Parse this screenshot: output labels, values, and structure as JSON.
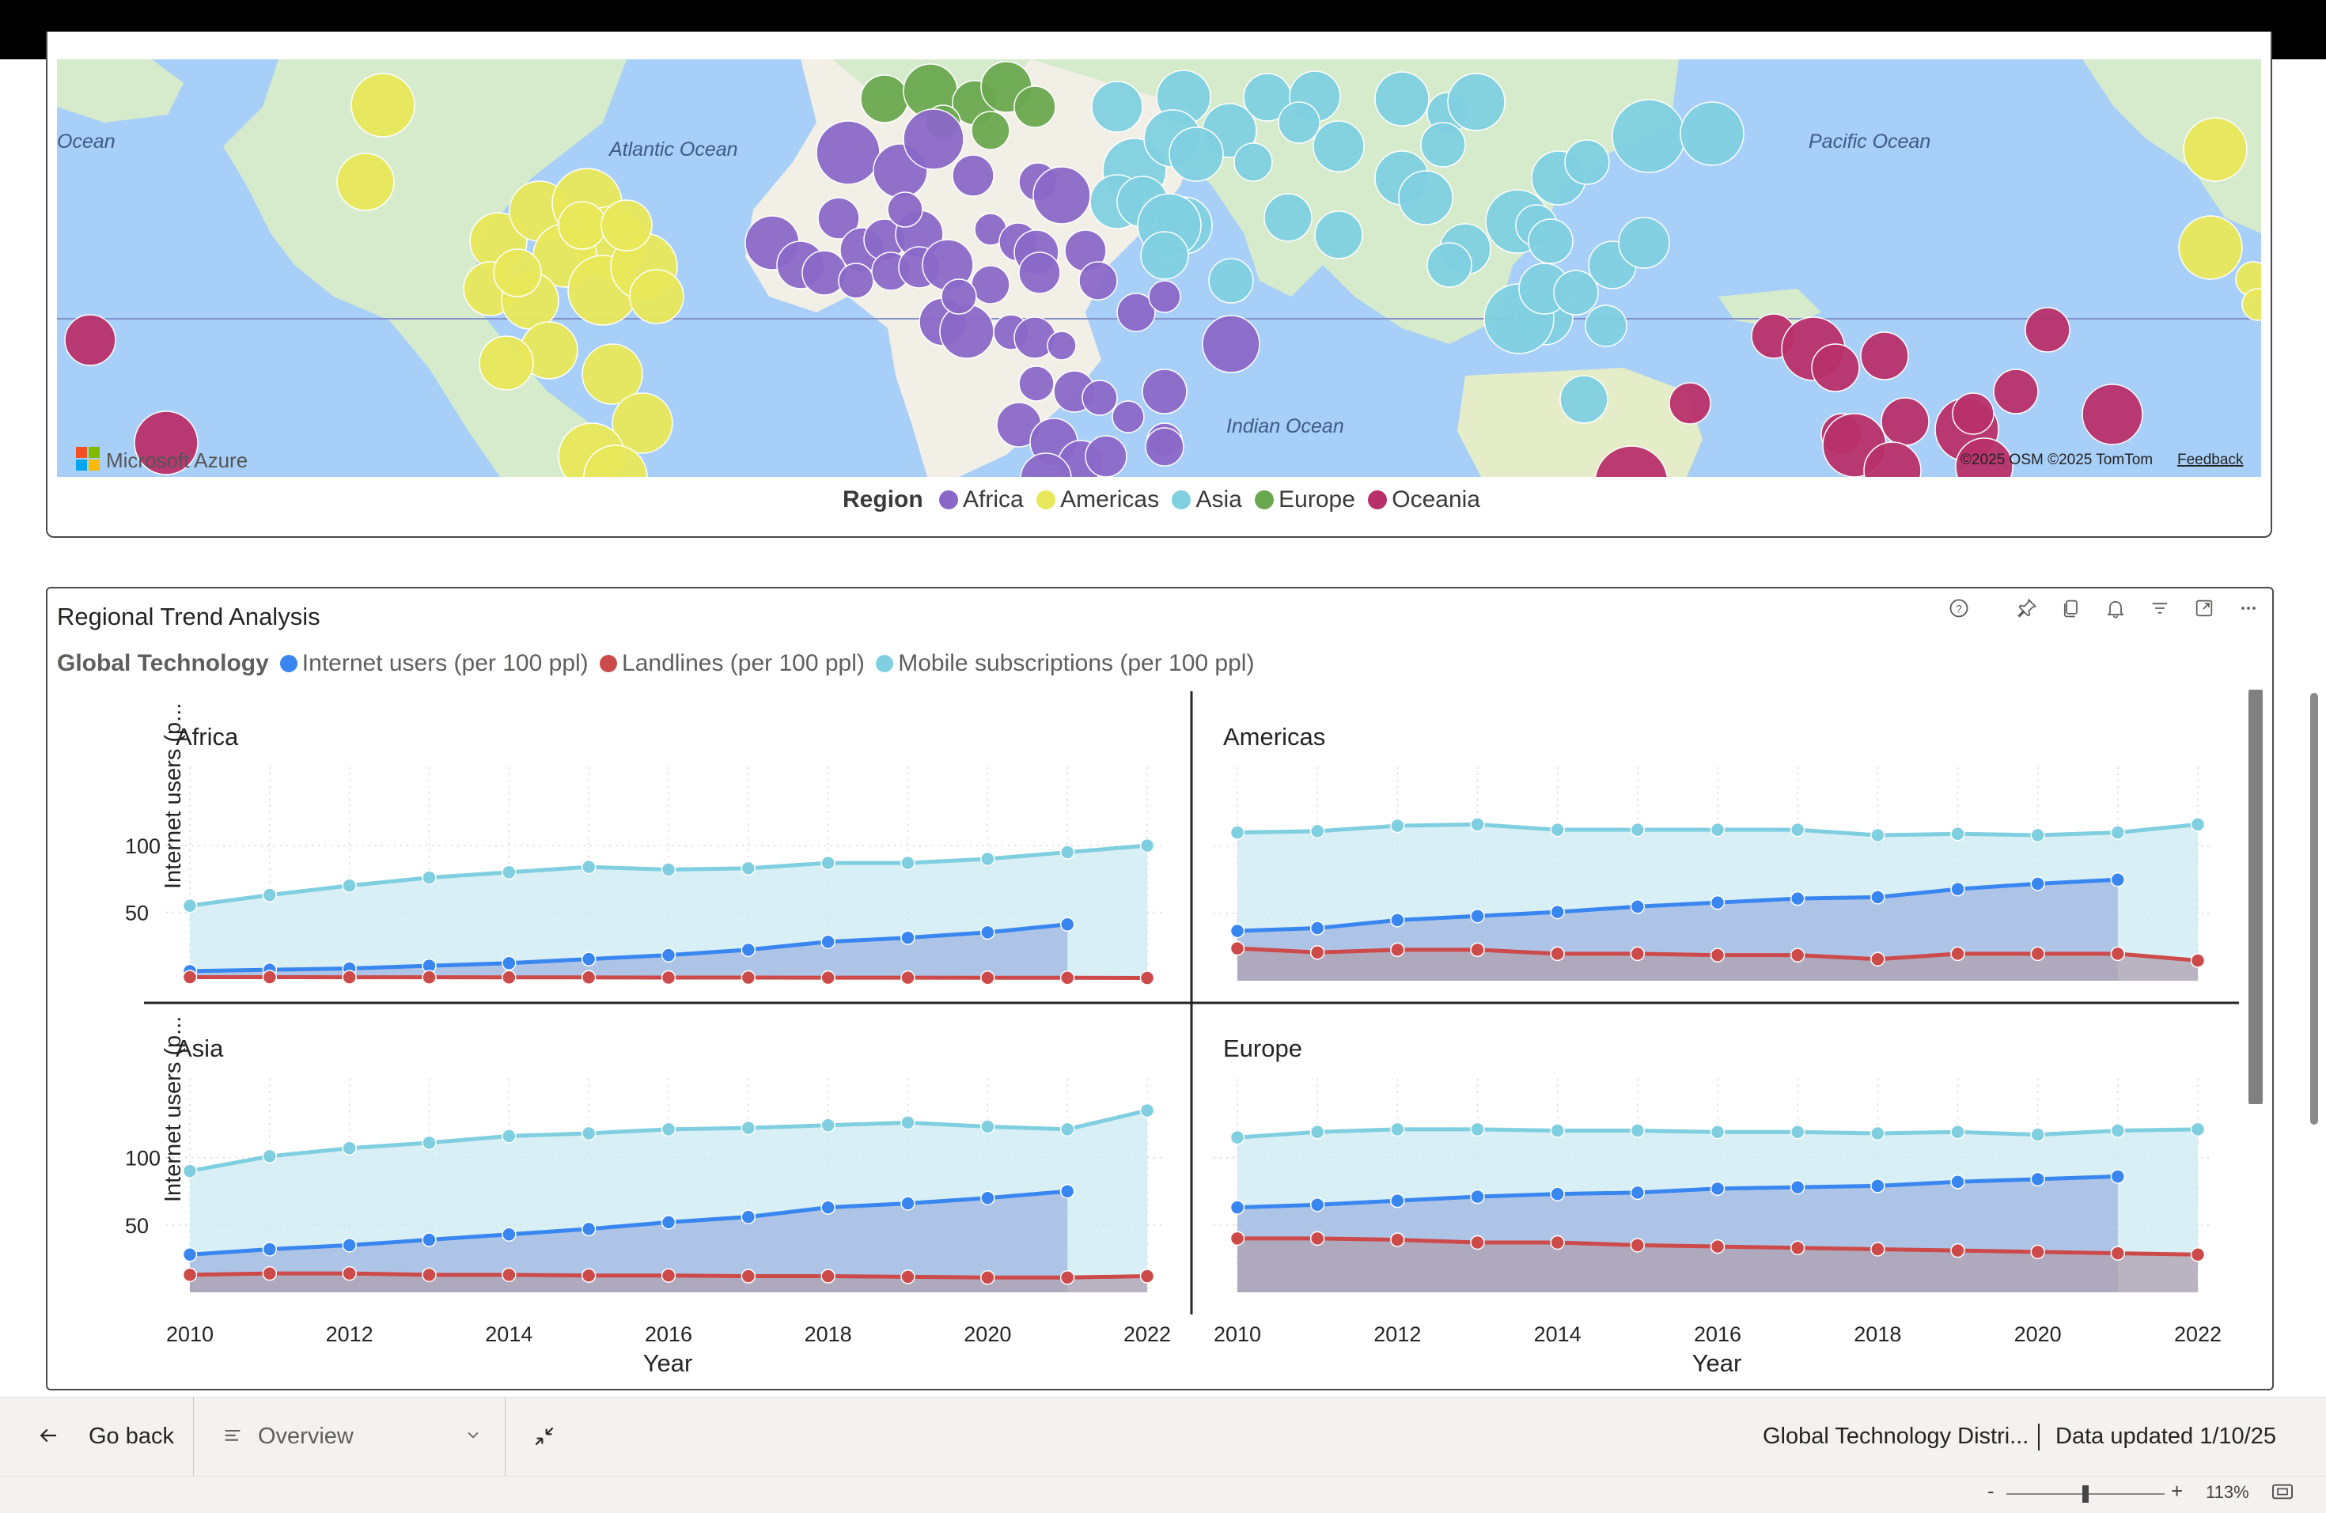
{
  "map": {
    "labels": {
      "ocean_left": "Ocean",
      "atlantic": "Atlantic Ocean",
      "pacific": "Pacific Ocean",
      "indian": "Indian Ocean"
    },
    "attribution": "©2025 OSM  ©2025 TomTom",
    "feedback": "Feedback",
    "brand": "Microsoft Azure",
    "legend": {
      "title": "Region",
      "items": [
        {
          "label": "Africa",
          "color": "#8b68c8"
        },
        {
          "label": "Americas",
          "color": "#e8e85a"
        },
        {
          "label": "Asia",
          "color": "#7fd0e0"
        },
        {
          "label": "Europe",
          "color": "#6aa84f"
        },
        {
          "label": "Oceania",
          "color": "#b8306a"
        }
      ]
    }
  },
  "trend": {
    "title": "Regional Trend Analysis",
    "legend_title": "Global Technology",
    "legend": [
      {
        "label": "Internet users (per 100 ppl)",
        "color": "#3a86f0"
      },
      {
        "label": "Landlines (per 100 ppl)",
        "color": "#cc4a4a"
      },
      {
        "label": "Mobile subscriptions (per 100 ppl)",
        "color": "#7fcfe0"
      }
    ]
  },
  "chart_data": {
    "type": "area",
    "x": [
      2010,
      2011,
      2012,
      2013,
      2014,
      2015,
      2016,
      2017,
      2018,
      2019,
      2020,
      2021,
      2022
    ],
    "xticks": [
      "2010",
      "2012",
      "2014",
      "2016",
      "2018",
      "2020",
      "2022"
    ],
    "yticks": [
      "100",
      "50"
    ],
    "ylabel": "Internet users (p...",
    "xlabel": "Year",
    "ylim": [
      0,
      135
    ],
    "grid": true,
    "panels": [
      {
        "title": "Africa",
        "series": [
          {
            "name": "Mobile subscriptions (per 100 ppl)",
            "values": [
              55,
              63,
              70,
              76,
              80,
              84,
              82,
              83,
              87,
              87,
              90,
              95,
              100
            ]
          },
          {
            "name": "Internet users (per 100 ppl)",
            "values": [
              6,
              7,
              8,
              10,
              12,
              15,
              18,
              22,
              28,
              31,
              35,
              41,
              null
            ]
          },
          {
            "name": "Landlines (per 100 ppl)",
            "values": [
              1.5,
              1.5,
              1.4,
              1.4,
              1.3,
              1.3,
              1.2,
              1.2,
              1.1,
              1.1,
              1.0,
              1.0,
              0.9
            ]
          }
        ]
      },
      {
        "title": "Americas",
        "series": [
          {
            "name": "Mobile subscriptions (per 100 ppl)",
            "values": [
              110,
              111,
              115,
              116,
              112,
              112,
              112,
              112,
              108,
              109,
              108,
              110,
              116
            ]
          },
          {
            "name": "Internet users (per 100 ppl)",
            "values": [
              37,
              39,
              45,
              48,
              51,
              55,
              58,
              61,
              62,
              68,
              72,
              75,
              null
            ]
          },
          {
            "name": "Landlines (per 100 ppl)",
            "values": [
              24,
              21,
              23,
              23,
              20,
              20,
              19,
              19,
              16,
              20,
              20,
              20,
              15
            ]
          }
        ]
      },
      {
        "title": "Asia",
        "series": [
          {
            "name": "Mobile subscriptions (per 100 ppl)",
            "values": [
              90,
              101,
              107,
              111,
              116,
              118,
              121,
              122,
              124,
              126,
              123,
              121,
              135
            ]
          },
          {
            "name": "Internet users (per 100 ppl)",
            "values": [
              28,
              32,
              35,
              39,
              43,
              47,
              52,
              56,
              63,
              66,
              70,
              75,
              null
            ]
          },
          {
            "name": "Landlines (per 100 ppl)",
            "values": [
              13,
              14,
              14,
              13,
              13,
              12.5,
              12.5,
              12,
              12,
              11.5,
              11,
              11,
              12
            ]
          }
        ]
      },
      {
        "title": "Europe",
        "series": [
          {
            "name": "Mobile subscriptions (per 100 ppl)",
            "values": [
              115,
              119,
              121,
              121,
              120,
              120,
              119,
              119,
              118,
              119,
              117,
              120,
              121
            ]
          },
          {
            "name": "Internet users (per 100 ppl)",
            "values": [
              63,
              65,
              68,
              71,
              73,
              74,
              77,
              78,
              79,
              82,
              84,
              86,
              null
            ]
          },
          {
            "name": "Landlines (per 100 ppl)",
            "values": [
              40,
              40,
              39,
              37,
              37,
              35,
              34,
              33,
              32,
              31,
              30,
              29,
              28
            ]
          }
        ]
      }
    ]
  },
  "footer": {
    "back": "Go back",
    "page": "Overview",
    "report_name": "Global Technology Distri...",
    "updated": "Data updated 1/10/25",
    "zoom": "113%",
    "zoom_minus": "-",
    "zoom_plus": "+"
  }
}
